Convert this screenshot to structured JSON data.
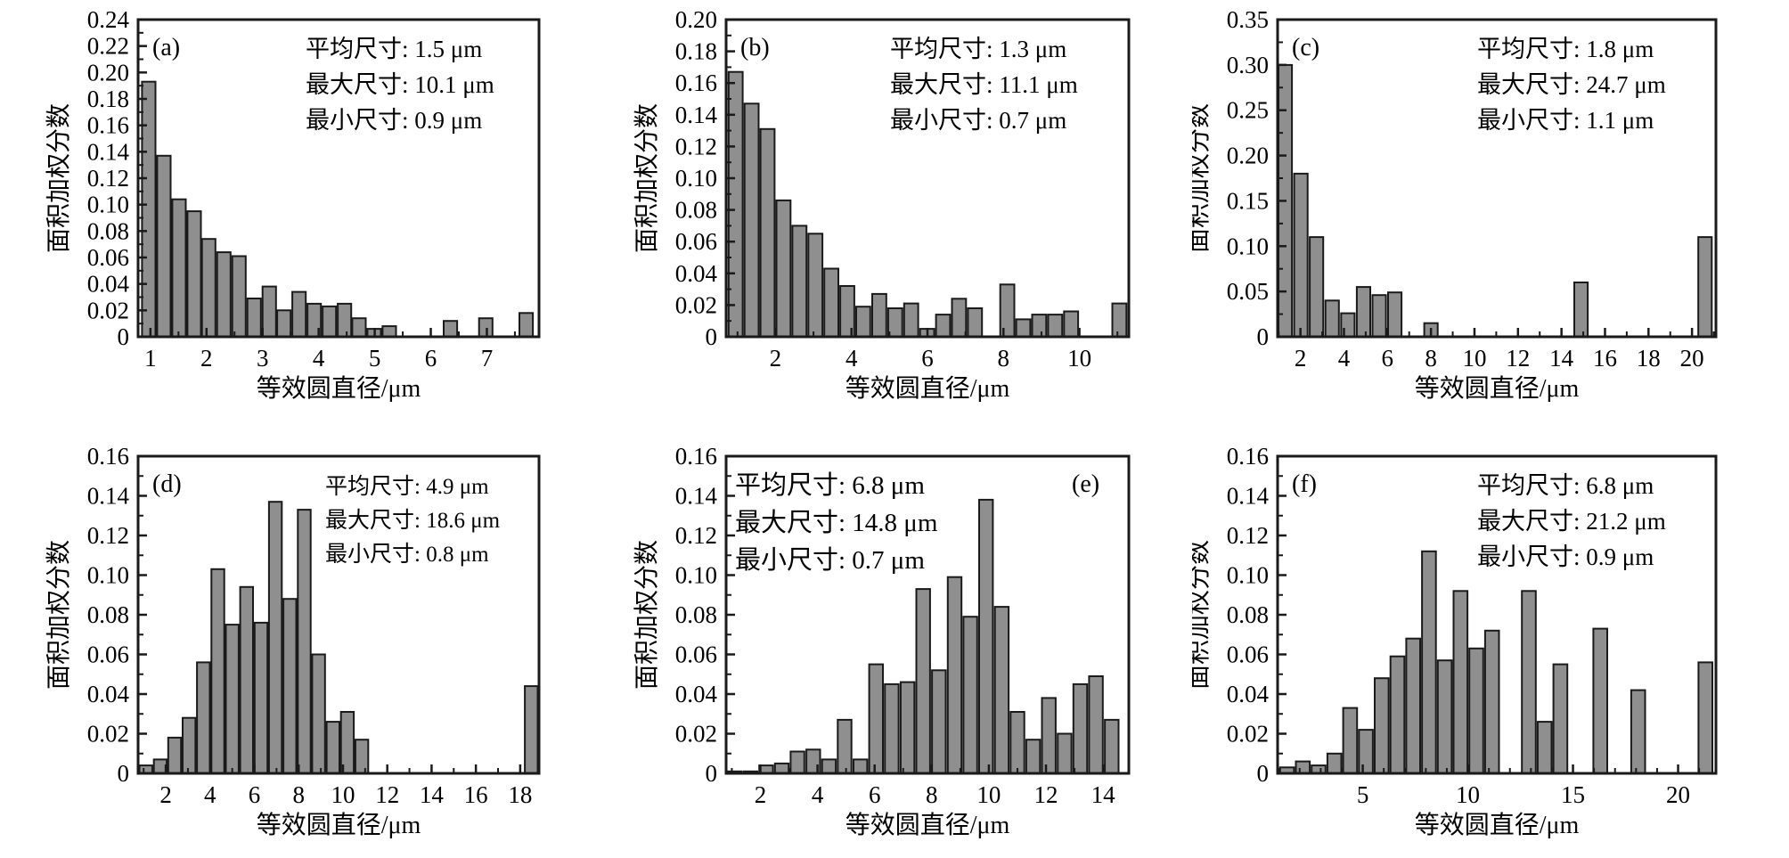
{
  "figure": {
    "background": "#ffffff",
    "bar_fill": "#8f8f8f",
    "bar_stroke": "#1a1a1a",
    "axis_color": "#1a1a1a",
    "text_color": "#000000"
  },
  "chart_data": [
    {
      "id": "a",
      "type": "bar",
      "panel_label": "(a)",
      "annotations": [
        "平均尺寸: 1.5 μm",
        "最大尺寸: 10.1 μm",
        "最小尺寸: 0.9 μm"
      ],
      "xlabel": "等效圆直径/μm",
      "ylabel": "面积加权分数",
      "ylim": [
        0,
        0.24
      ],
      "ytick_step": 0.02,
      "xlim": [
        0.78,
        7.93
      ],
      "xticks": [
        1,
        2,
        3,
        4,
        5,
        6,
        7
      ],
      "xminor_step": 0.5,
      "bar_width": 0.24,
      "bars": [
        [
          0.97,
          0.193
        ],
        [
          1.24,
          0.137
        ],
        [
          1.51,
          0.104
        ],
        [
          1.78,
          0.095
        ],
        [
          2.04,
          0.074
        ],
        [
          2.31,
          0.064
        ],
        [
          2.58,
          0.061
        ],
        [
          2.85,
          0.029
        ],
        [
          3.12,
          0.038
        ],
        [
          3.38,
          0.02
        ],
        [
          3.65,
          0.034
        ],
        [
          3.92,
          0.025
        ],
        [
          4.19,
          0.023
        ],
        [
          4.46,
          0.025
        ],
        [
          4.72,
          0.014
        ],
        [
          4.99,
          0.006
        ],
        [
          5.26,
          0.008
        ],
        [
          6.35,
          0.012
        ],
        [
          6.98,
          0.014
        ],
        [
          7.7,
          0.018
        ]
      ]
    },
    {
      "id": "b",
      "type": "bar",
      "panel_label": "(b)",
      "annotations": [
        "平均尺寸: 1.3 μm",
        "最大尺寸: 11.1 μm",
        "最小尺寸: 0.7 μm"
      ],
      "xlabel": "等效圆直径/μm",
      "ylabel": "面积加权分数",
      "ylim": [
        0,
        0.2
      ],
      "ytick_step": 0.02,
      "xlim": [
        0.7,
        11.3
      ],
      "xticks": [
        2,
        4,
        6,
        8,
        10
      ],
      "xminor_step": 1,
      "bar_width": 0.37,
      "bars": [
        [
          0.95,
          0.167
        ],
        [
          1.37,
          0.147
        ],
        [
          1.79,
          0.131
        ],
        [
          2.21,
          0.086
        ],
        [
          2.63,
          0.07
        ],
        [
          3.05,
          0.065
        ],
        [
          3.47,
          0.043
        ],
        [
          3.89,
          0.032
        ],
        [
          4.31,
          0.019
        ],
        [
          4.73,
          0.027
        ],
        [
          5.15,
          0.018
        ],
        [
          5.57,
          0.021
        ],
        [
          5.99,
          0.005
        ],
        [
          6.41,
          0.014
        ],
        [
          6.83,
          0.024
        ],
        [
          7.25,
          0.018
        ],
        [
          8.1,
          0.033
        ],
        [
          8.52,
          0.011
        ],
        [
          8.94,
          0.014
        ],
        [
          9.36,
          0.014
        ],
        [
          9.78,
          0.016
        ],
        [
          11.05,
          0.021
        ]
      ]
    },
    {
      "id": "c",
      "type": "bar",
      "panel_label": "(c)",
      "annotations": [
        "平均尺寸: 1.8 μm",
        "最大尺寸: 24.7 μm",
        "最小尺寸: 1.1 μm"
      ],
      "xlabel": "等效圆直径/μm",
      "ylabel": "面积加权分数",
      "ylim": [
        0,
        0.35
      ],
      "ytick_step": 0.05,
      "xlim": [
        0.95,
        21.1
      ],
      "xticks": [
        2,
        4,
        6,
        8,
        10,
        12,
        14,
        16,
        18,
        20
      ],
      "xminor_step": 1,
      "bar_width": 0.62,
      "bars": [
        [
          1.3,
          0.3
        ],
        [
          2.02,
          0.18
        ],
        [
          2.74,
          0.11
        ],
        [
          3.46,
          0.04
        ],
        [
          4.18,
          0.026
        ],
        [
          4.9,
          0.055
        ],
        [
          5.62,
          0.046
        ],
        [
          6.34,
          0.049
        ],
        [
          8.0,
          0.015
        ],
        [
          14.9,
          0.06
        ],
        [
          20.6,
          0.11
        ]
      ]
    },
    {
      "id": "d",
      "type": "bar",
      "panel_label": "(d)",
      "annotations": [
        "平均尺寸: 4.9 μm",
        "最大尺寸: 18.6 μm",
        "最小尺寸: 0.8 μm"
      ],
      "xlabel": "等效圆直径/μm",
      "ylabel": "面积加权分数",
      "ylim": [
        0,
        0.16
      ],
      "ytick_step": 0.02,
      "xlim": [
        0.75,
        18.85
      ],
      "xticks": [
        2,
        4,
        6,
        8,
        10,
        12,
        14,
        16,
        18
      ],
      "xminor_step": 1,
      "bar_width": 0.58,
      "bars": [
        [
          1.1,
          0.004
        ],
        [
          1.75,
          0.007
        ],
        [
          2.4,
          0.018
        ],
        [
          3.05,
          0.028
        ],
        [
          3.7,
          0.056
        ],
        [
          4.35,
          0.103
        ],
        [
          5.0,
          0.075
        ],
        [
          5.65,
          0.094
        ],
        [
          6.3,
          0.076
        ],
        [
          6.95,
          0.137
        ],
        [
          7.6,
          0.088
        ],
        [
          8.25,
          0.133
        ],
        [
          8.9,
          0.06
        ],
        [
          9.55,
          0.026
        ],
        [
          10.2,
          0.031
        ],
        [
          10.85,
          0.017
        ],
        [
          18.5,
          0.044
        ]
      ]
    },
    {
      "id": "e",
      "type": "bar",
      "panel_label": "(e)",
      "annotations": [
        "平均尺寸: 6.8 μm",
        "最大尺寸: 14.8 μm",
        "最小尺寸: 0.7 μm"
      ],
      "xlabel": "等效圆直径/μm",
      "ylabel": "面积加权分数",
      "ylim": [
        0,
        0.16
      ],
      "ytick_step": 0.02,
      "xlim": [
        0.8,
        14.9
      ],
      "xticks": [
        2,
        4,
        6,
        8,
        10,
        12,
        14
      ],
      "xminor_step": 1,
      "bar_width": 0.48,
      "bars": [
        [
          1.1,
          0.001
        ],
        [
          1.65,
          0.001
        ],
        [
          2.2,
          0.004
        ],
        [
          2.75,
          0.005
        ],
        [
          3.3,
          0.011
        ],
        [
          3.85,
          0.012
        ],
        [
          4.4,
          0.007
        ],
        [
          4.95,
          0.027
        ],
        [
          5.5,
          0.007
        ],
        [
          6.05,
          0.055
        ],
        [
          6.6,
          0.045
        ],
        [
          7.15,
          0.046
        ],
        [
          7.7,
          0.093
        ],
        [
          8.25,
          0.052
        ],
        [
          8.8,
          0.099
        ],
        [
          9.35,
          0.079
        ],
        [
          9.9,
          0.138
        ],
        [
          10.45,
          0.084
        ],
        [
          11.0,
          0.031
        ],
        [
          11.55,
          0.017
        ],
        [
          12.1,
          0.038
        ],
        [
          12.65,
          0.02
        ],
        [
          13.2,
          0.045
        ],
        [
          13.75,
          0.049
        ],
        [
          14.3,
          0.027
        ]
      ]
    },
    {
      "id": "f",
      "type": "bar",
      "panel_label": "(f)",
      "annotations": [
        "平均尺寸: 6.8 μm",
        "最大尺寸: 21.2 μm",
        "最小尺寸: 0.9 μm"
      ],
      "xlabel": "等效圆直径/μm",
      "ylabel": "面积加权分数",
      "ylim": [
        0,
        0.16
      ],
      "ytick_step": 0.02,
      "xlim": [
        0.95,
        21.8
      ],
      "xticks": [
        5,
        10,
        15,
        20
      ],
      "xminor_step": 1,
      "bar_width": 0.66,
      "bars": [
        [
          1.4,
          0.003
        ],
        [
          2.15,
          0.006
        ],
        [
          2.9,
          0.004
        ],
        [
          3.65,
          0.01
        ],
        [
          4.4,
          0.033
        ],
        [
          5.15,
          0.022
        ],
        [
          5.9,
          0.048
        ],
        [
          6.65,
          0.059
        ],
        [
          7.4,
          0.068
        ],
        [
          8.15,
          0.112
        ],
        [
          8.9,
          0.057
        ],
        [
          9.65,
          0.092
        ],
        [
          10.4,
          0.063
        ],
        [
          11.15,
          0.072
        ],
        [
          12.9,
          0.092
        ],
        [
          13.65,
          0.026
        ],
        [
          14.4,
          0.055
        ],
        [
          16.3,
          0.073
        ],
        [
          18.1,
          0.042
        ],
        [
          21.3,
          0.056
        ]
      ]
    }
  ]
}
